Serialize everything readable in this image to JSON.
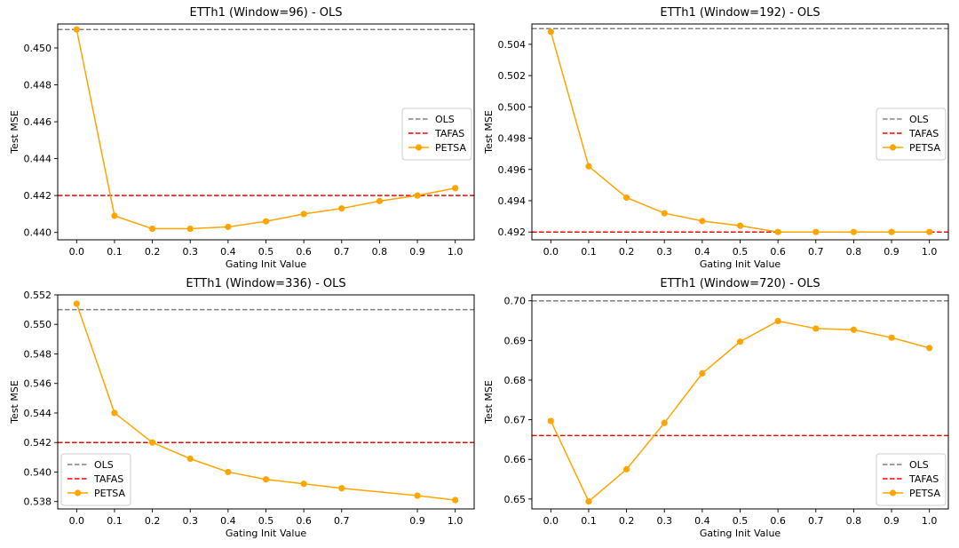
{
  "chart_data": [
    {
      "type": "line",
      "title": "ETTh1 (Window=96) - OLS",
      "xlabel": "Gating Init Value",
      "ylabel": "Test MSE",
      "x_ticks": [
        "0.0",
        "0.1",
        "0.2",
        "0.3",
        "0.4",
        "0.5",
        "0.6",
        "0.7",
        "0.8",
        "0.9",
        "1.0"
      ],
      "y_ticks": [
        "0.440",
        "0.442",
        "0.444",
        "0.446",
        "0.448",
        "0.450"
      ],
      "xlim": [
        -0.05,
        1.05
      ],
      "ylim": [
        0.4396,
        0.4513
      ],
      "legend_position": "center-right",
      "series": [
        {
          "name": "OLS",
          "kind": "hline",
          "value": 0.451,
          "color": "#808080",
          "style": "dashed"
        },
        {
          "name": "TAFAS",
          "kind": "hline",
          "value": 0.442,
          "color": "#ff0000",
          "style": "dashed"
        },
        {
          "name": "PETSA",
          "kind": "line",
          "color": "#ffa500",
          "marker": "circle",
          "x": [
            0.0,
            0.1,
            0.2,
            0.3,
            0.4,
            0.5,
            0.6,
            0.7,
            0.8,
            0.9,
            1.0
          ],
          "y": [
            0.451,
            0.4409,
            0.4402,
            0.4402,
            0.4403,
            0.4406,
            0.441,
            0.4413,
            0.4417,
            0.442,
            0.4424
          ]
        }
      ]
    },
    {
      "type": "line",
      "title": "ETTh1 (Window=192) - OLS",
      "xlabel": "Gating Init Value",
      "ylabel": "Test MSE",
      "x_ticks": [
        "0.0",
        "0.1",
        "0.2",
        "0.3",
        "0.4",
        "0.5",
        "0.6",
        "0.7",
        "0.8",
        "0.9",
        "1.0"
      ],
      "y_ticks": [
        "0.492",
        "0.494",
        "0.496",
        "0.498",
        "0.500",
        "0.502",
        "0.504"
      ],
      "xlim": [
        -0.05,
        1.05
      ],
      "ylim": [
        0.4915,
        0.5053
      ],
      "legend_position": "center-right",
      "series": [
        {
          "name": "OLS",
          "kind": "hline",
          "value": 0.505,
          "color": "#808080",
          "style": "dashed"
        },
        {
          "name": "TAFAS",
          "kind": "hline",
          "value": 0.492,
          "color": "#ff0000",
          "style": "dashed"
        },
        {
          "name": "PETSA",
          "kind": "line",
          "color": "#ffa500",
          "marker": "circle",
          "x": [
            0.0,
            0.1,
            0.2,
            0.3,
            0.4,
            0.5,
            0.6,
            0.7,
            0.8,
            0.9,
            1.0
          ],
          "y": [
            0.5048,
            0.4962,
            0.4942,
            0.4932,
            0.4927,
            0.4924,
            0.492,
            0.492,
            0.492,
            0.492,
            0.492
          ]
        }
      ]
    },
    {
      "type": "line",
      "title": "ETTh1 (Window=336) - OLS",
      "xlabel": "Gating Init Value",
      "ylabel": "Test MSE",
      "x_ticks": [
        "0.0",
        "0.1",
        "0.2",
        "0.3",
        "0.4",
        "0.5",
        "0.6",
        "0.7",
        "0.9",
        "1.0"
      ],
      "x_tick_values": [
        0.0,
        0.1,
        0.2,
        0.3,
        0.4,
        0.5,
        0.6,
        0.7,
        0.9,
        1.0
      ],
      "y_ticks": [
        "0.538",
        "0.540",
        "0.542",
        "0.544",
        "0.546",
        "0.548",
        "0.550",
        "0.552"
      ],
      "xlim": [
        -0.05,
        1.05
      ],
      "ylim": [
        0.5375,
        0.552
      ],
      "legend_position": "lower-left",
      "series": [
        {
          "name": "OLS",
          "kind": "hline",
          "value": 0.551,
          "color": "#808080",
          "style": "dashed"
        },
        {
          "name": "TAFAS",
          "kind": "hline",
          "value": 0.542,
          "color": "#ff0000",
          "style": "dashed"
        },
        {
          "name": "PETSA",
          "kind": "line",
          "color": "#ffa500",
          "marker": "circle",
          "x": [
            0.0,
            0.1,
            0.2,
            0.3,
            0.4,
            0.5,
            0.6,
            0.7,
            0.9,
            1.0
          ],
          "y": [
            0.5514,
            0.544,
            0.542,
            0.5409,
            0.54,
            0.5395,
            0.5392,
            0.5389,
            0.5384,
            0.5381
          ]
        }
      ]
    },
    {
      "type": "line",
      "title": "ETTh1 (Window=720) - OLS",
      "xlabel": "Gating Init Value",
      "ylabel": "Test MSE",
      "x_ticks": [
        "0.0",
        "0.1",
        "0.2",
        "0.3",
        "0.4",
        "0.5",
        "0.6",
        "0.7",
        "0.8",
        "0.9",
        "1.0"
      ],
      "y_ticks": [
        "0.65",
        "0.66",
        "0.67",
        "0.68",
        "0.69",
        "0.70"
      ],
      "xlim": [
        -0.05,
        1.05
      ],
      "ylim": [
        0.6475,
        0.7015
      ],
      "legend_position": "lower-right",
      "series": [
        {
          "name": "OLS",
          "kind": "hline",
          "value": 0.7,
          "color": "#808080",
          "style": "dashed"
        },
        {
          "name": "TAFAS",
          "kind": "hline",
          "value": 0.666,
          "color": "#ff0000",
          "style": "dashed"
        },
        {
          "name": "PETSA",
          "kind": "line",
          "color": "#ffa500",
          "marker": "circle",
          "x": [
            0.0,
            0.1,
            0.2,
            0.3,
            0.4,
            0.5,
            0.6,
            0.7,
            0.8,
            0.9,
            1.0
          ],
          "y": [
            0.6697,
            0.6494,
            0.6575,
            0.6692,
            0.6817,
            0.6897,
            0.6949,
            0.693,
            0.6927,
            0.6907,
            0.6881
          ]
        }
      ]
    }
  ]
}
